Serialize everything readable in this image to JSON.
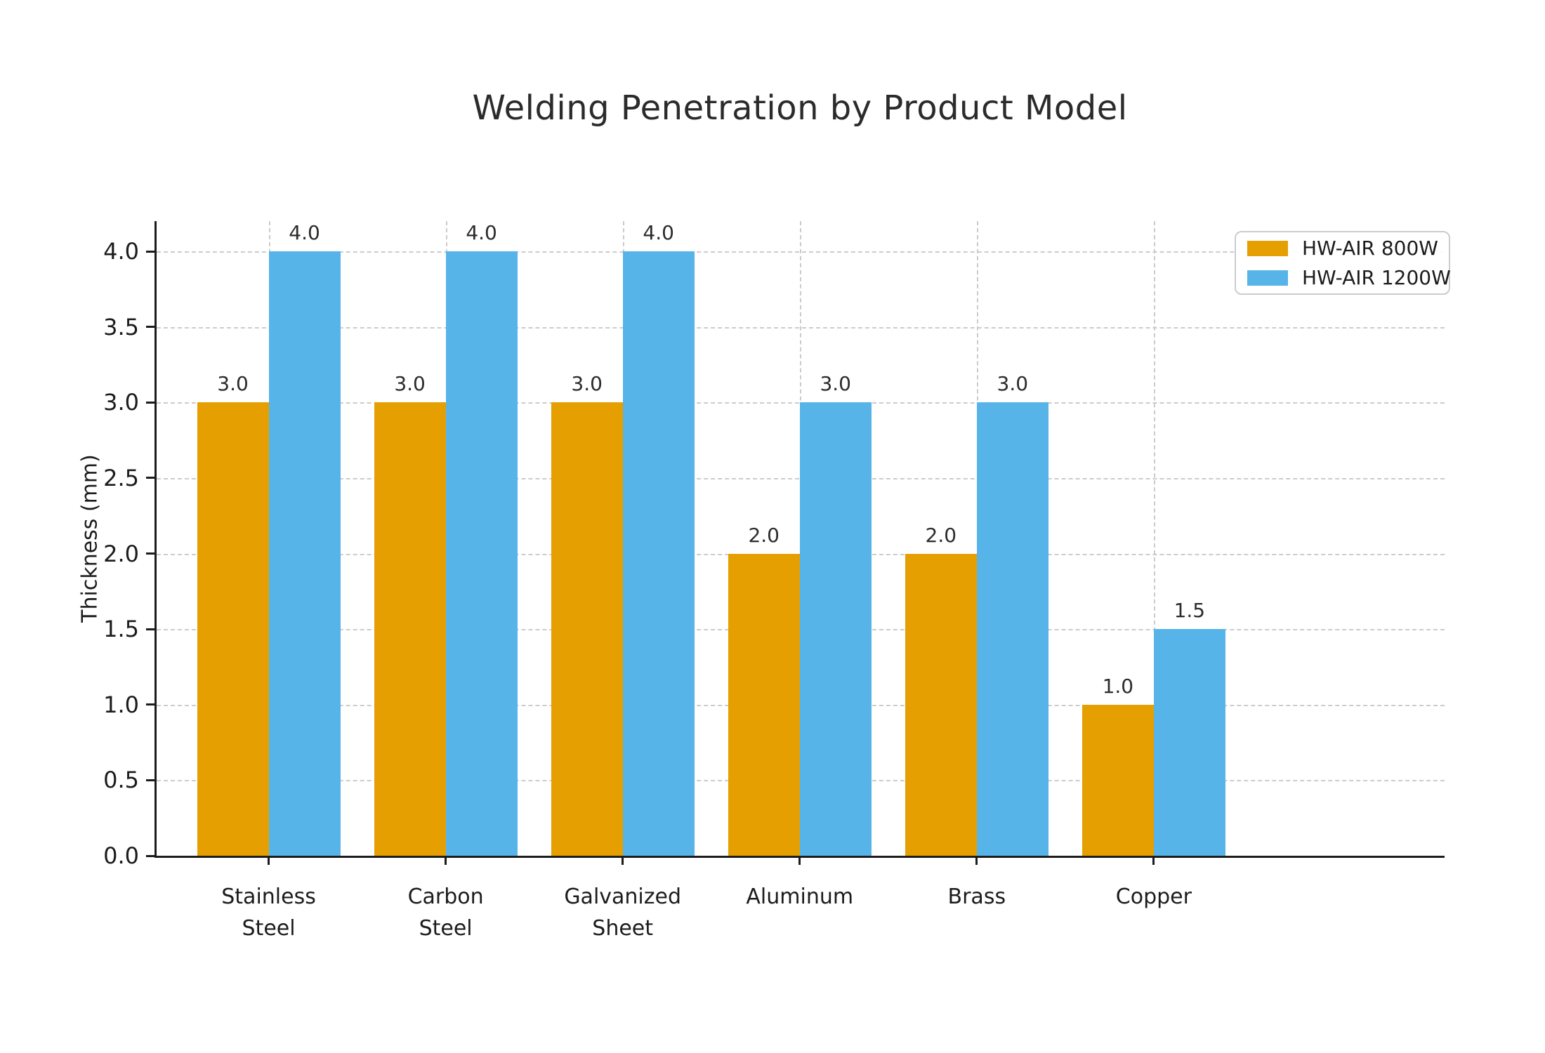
{
  "title": "Welding Penetration by Product Model",
  "chart_data": {
    "type": "bar",
    "title": "Welding Penetration by Product Model",
    "xlabel": "",
    "ylabel": "Thickness (mm)",
    "categories": [
      "Stainless\nSteel",
      "Carbon\nSteel",
      "Galvanized\nSheet",
      "Aluminum",
      "Brass",
      "Copper"
    ],
    "series": [
      {
        "name": "HW-AIR 800W",
        "color": "#E69F00",
        "values": [
          3.0,
          3.0,
          3.0,
          2.0,
          2.0,
          1.0
        ]
      },
      {
        "name": "HW-AIR 1200W",
        "color": "#56B4E9",
        "values": [
          4.0,
          4.0,
          4.0,
          3.0,
          3.0,
          1.5
        ]
      }
    ],
    "ylim": [
      0,
      4.2
    ],
    "ytick_labels": [
      "0.0",
      "0.5",
      "1.0",
      "1.5",
      "2.0",
      "2.5",
      "3.0",
      "3.5",
      "4.0"
    ],
    "grid": "dashed-both-axes",
    "legend_position": "upper-right",
    "bar_value_labels_shown": true,
    "value_label_format": "one-decimal"
  },
  "colors": {
    "series_800w": "#E69F00",
    "series_1200w": "#56B4E9",
    "axis": "#1c1c1c",
    "grid": "#cccccc",
    "text": "#2b2b2b",
    "background": "#ffffff"
  }
}
